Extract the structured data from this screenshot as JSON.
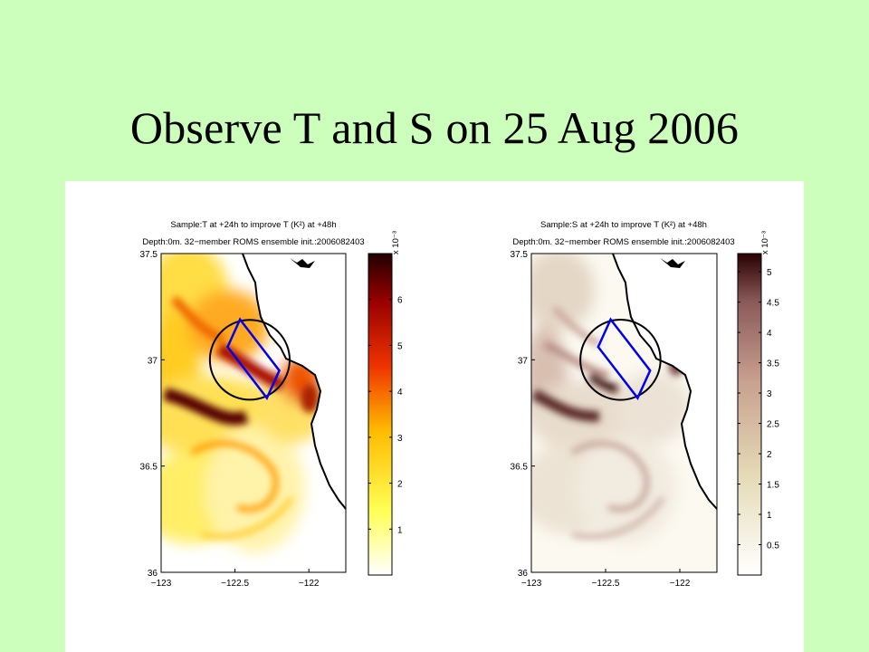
{
  "slide": {
    "title": "Observe T and S on 25 Aug 2006",
    "background": "#ccffbb"
  },
  "chart_data": [
    {
      "type": "heatmap",
      "title_line1": "Sample:T at +24h to improve T (K²) at +48h",
      "title_line2": "Depth:0m. 32−member ROMS ensemble init.:2006082403",
      "colorbar_multiplier": "x 10⁻³",
      "colormap": "hot",
      "xlim": [
        -123,
        -121.75
      ],
      "ylim": [
        36,
        37.5
      ],
      "x_ticks": [
        {
          "value": -123,
          "label": "−123"
        },
        {
          "value": -122.5,
          "label": "−122.5"
        },
        {
          "value": -122,
          "label": "−122"
        }
      ],
      "y_ticks": [
        {
          "value": 36,
          "label": "36"
        },
        {
          "value": 36.5,
          "label": "36.5"
        },
        {
          "value": 37,
          "label": "37"
        },
        {
          "value": 37.5,
          "label": "37.5"
        }
      ],
      "colorbar_range": [
        0,
        7
      ],
      "colorbar_ticks": [
        1,
        2,
        3,
        4,
        5,
        6
      ],
      "observation_circle": {
        "center_lon": -122.4,
        "center_lat": 37.0,
        "radius_deg": 0.27
      },
      "target_box": {
        "lon": [
          -122.55,
          -122.2
        ],
        "lat": [
          36.82,
          37.19
        ]
      },
      "field_features": [
        {
          "lon": -122.9,
          "lat": 36.8,
          "value": 6.8
        },
        {
          "lon": -122.7,
          "lat": 36.72,
          "value": 5.6
        },
        {
          "lon": -122.4,
          "lat": 37.0,
          "value": 6.0
        },
        {
          "lon": -122.05,
          "lat": 36.88,
          "value": 5.2
        },
        {
          "lon": -122.95,
          "lat": 37.35,
          "value": 4.5
        },
        {
          "lon": -122.7,
          "lat": 36.3,
          "value": 2.5
        }
      ]
    },
    {
      "type": "heatmap",
      "title_line1": "Sample:S at +24h to improve T (K²) at +48h",
      "title_line2": "Depth:0m. 32−member ROMS ensemble init.:2006082403",
      "colorbar_multiplier": "x 10⁻³",
      "colormap": "pink",
      "xlim": [
        -123,
        -121.75
      ],
      "ylim": [
        36,
        37.5
      ],
      "x_ticks": [
        {
          "value": -123,
          "label": "−123"
        },
        {
          "value": -122.5,
          "label": "−122.5"
        },
        {
          "value": -122,
          "label": "−122"
        }
      ],
      "y_ticks": [
        {
          "value": 36,
          "label": "36"
        },
        {
          "value": 36.5,
          "label": "36.5"
        },
        {
          "value": 37,
          "label": "37"
        },
        {
          "value": 37.5,
          "label": "37.5"
        }
      ],
      "colorbar_range": [
        0,
        5.3
      ],
      "colorbar_ticks": [
        {
          "value": 0.5,
          "label": "0.5"
        },
        {
          "value": 1,
          "label": "1"
        },
        {
          "value": 1.5,
          "label": "1.5"
        },
        {
          "value": 2,
          "label": "2"
        },
        {
          "value": 2.5,
          "label": "2.5"
        },
        {
          "value": 3,
          "label": "3"
        },
        {
          "value": 3.5,
          "label": "3.5"
        },
        {
          "value": 4,
          "label": "4"
        },
        {
          "value": 4.5,
          "label": "4.5"
        },
        {
          "value": 5,
          "label": "5"
        }
      ],
      "observation_circle": {
        "center_lon": -122.4,
        "center_lat": 37.0,
        "radius_deg": 0.27
      },
      "target_box": {
        "lon": [
          -122.55,
          -122.2
        ],
        "lat": [
          36.82,
          37.19
        ]
      },
      "field_features": [
        {
          "lon": -122.95,
          "lat": 36.85,
          "value": 5.0
        },
        {
          "lon": -122.55,
          "lat": 36.9,
          "value": 4.2
        },
        {
          "lon": -122.75,
          "lat": 37.25,
          "value": 2.8
        },
        {
          "lon": -122.6,
          "lat": 36.45,
          "value": 2.6
        },
        {
          "lon": -122.1,
          "lat": 36.65,
          "value": 2.0
        }
      ]
    }
  ]
}
